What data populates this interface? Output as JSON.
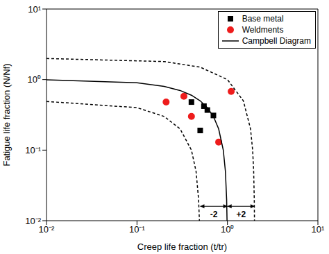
{
  "chart_data": {
    "type": "scatter",
    "x_label": "Creep life fraction (t/tr)",
    "y_label": "Fatigue life fraction (N/Nf)",
    "log": true,
    "grid": false,
    "legend": "upper right",
    "xlim": [
      0.01,
      10
    ],
    "ylim": [
      0.01,
      10
    ],
    "xticks": [
      {
        "value": 0.01,
        "label": "10⁻²"
      },
      {
        "value": 0.1,
        "label": "10⁻¹"
      },
      {
        "value": 1,
        "label": "10⁰"
      },
      {
        "value": 10,
        "label": "10¹"
      }
    ],
    "yticks": [
      {
        "value": 0.01,
        "label": "10⁻²"
      },
      {
        "value": 0.1,
        "label": "10⁻¹"
      },
      {
        "value": 1,
        "label": "10⁰"
      },
      {
        "value": 10,
        "label": "10¹"
      }
    ],
    "series": [
      {
        "name": "Base metal",
        "type": "scatter",
        "marker": "square",
        "color": "#000000",
        "x": [
          0.4,
          0.55,
          0.6,
          0.7,
          0.5
        ],
        "values": [
          0.48,
          0.42,
          0.37,
          0.31,
          0.19
        ]
      },
      {
        "name": "Weldments",
        "type": "scatter",
        "marker": "circle",
        "color": "#ee1c1c",
        "x": [
          0.21,
          0.33,
          0.4,
          0.8,
          1.1
        ],
        "values": [
          0.48,
          0.58,
          0.3,
          0.13,
          0.68
        ]
      },
      {
        "name": "Campbell Diagram",
        "type": "line",
        "line_style": "solid",
        "color": "#000000",
        "x": [
          0.01,
          0.1,
          0.2,
          0.3,
          0.4,
          0.5,
          0.6,
          0.7,
          0.8,
          0.9,
          0.95,
          0.98,
          0.99
        ],
        "values": [
          0.99,
          0.9,
          0.8,
          0.7,
          0.6,
          0.5,
          0.4,
          0.3,
          0.2,
          0.1,
          0.05,
          0.02,
          0.01
        ]
      },
      {
        "type": "line",
        "line_style": "dashed",
        "color": "#000000",
        "x": [
          0.01,
          0.1,
          0.2,
          0.3,
          0.4,
          0.45,
          0.48,
          0.49
        ],
        "values": [
          0.49,
          0.4,
          0.3,
          0.2,
          0.1,
          0.05,
          0.02,
          0.01
        ]
      },
      {
        "type": "line",
        "line_style": "dashed",
        "color": "#000000",
        "x": [
          0.01,
          0.2,
          0.5,
          1,
          1.5,
          1.8,
          1.9,
          1.95,
          1.98,
          1.99
        ],
        "values": [
          1.99,
          1.8,
          1.5,
          1,
          0.5,
          0.2,
          0.1,
          0.05,
          0.02,
          0.01
        ]
      }
    ],
    "annotations": [
      {
        "text": "-2",
        "x1": 0.5,
        "x2": 1,
        "y": 0.016
      },
      {
        "text": "+2",
        "x1": 1,
        "x2": 2,
        "y": 0.016
      }
    ]
  }
}
